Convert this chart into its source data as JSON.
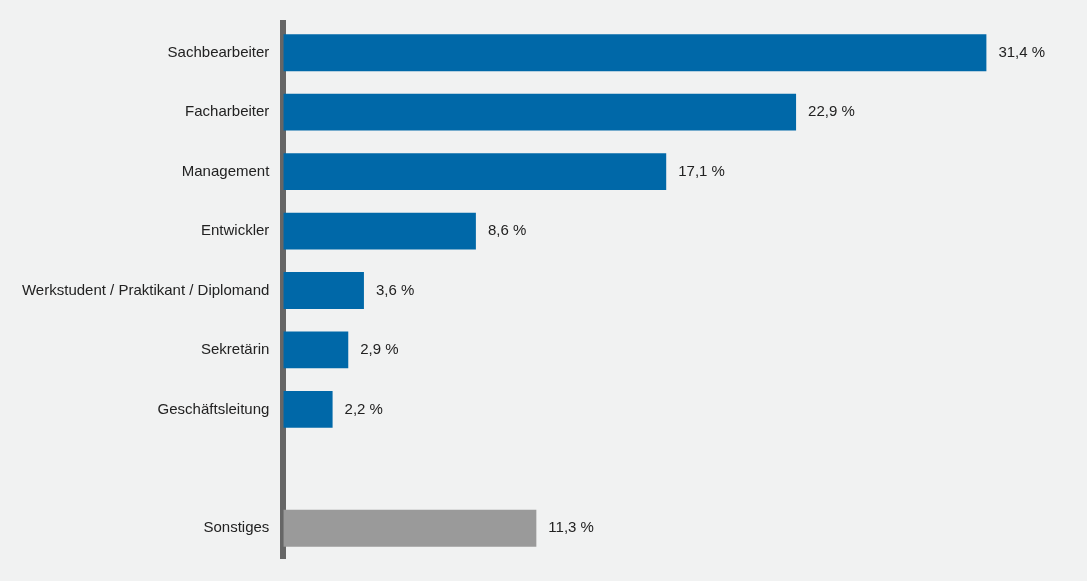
{
  "chart_data": {
    "type": "bar",
    "orientation": "horizontal",
    "categories": [
      "Sachbearbeiter",
      "Facharbeiter",
      "Management",
      "Entwickler",
      "Werkstudent / Praktikant / Diplomand",
      "Sekretärin",
      "Geschäftsleitung",
      null,
      "Sonstiges"
    ],
    "values": [
      31.4,
      22.9,
      17.1,
      8.6,
      3.6,
      2.9,
      2.2,
      null,
      11.3
    ],
    "colors": [
      "#0068a8",
      "#0068a8",
      "#0068a8",
      "#0068a8",
      "#0068a8",
      "#0068a8",
      "#0068a8",
      "#0068a8",
      "#9a9a9a"
    ],
    "value_labels": [
      "31,4 %",
      "22,9 %",
      "17,1 %",
      "8,6 %",
      "3,6 %",
      "2,9 %",
      "2,2 %",
      null,
      "11,3 %"
    ],
    "grid": false,
    "legend": false
  }
}
